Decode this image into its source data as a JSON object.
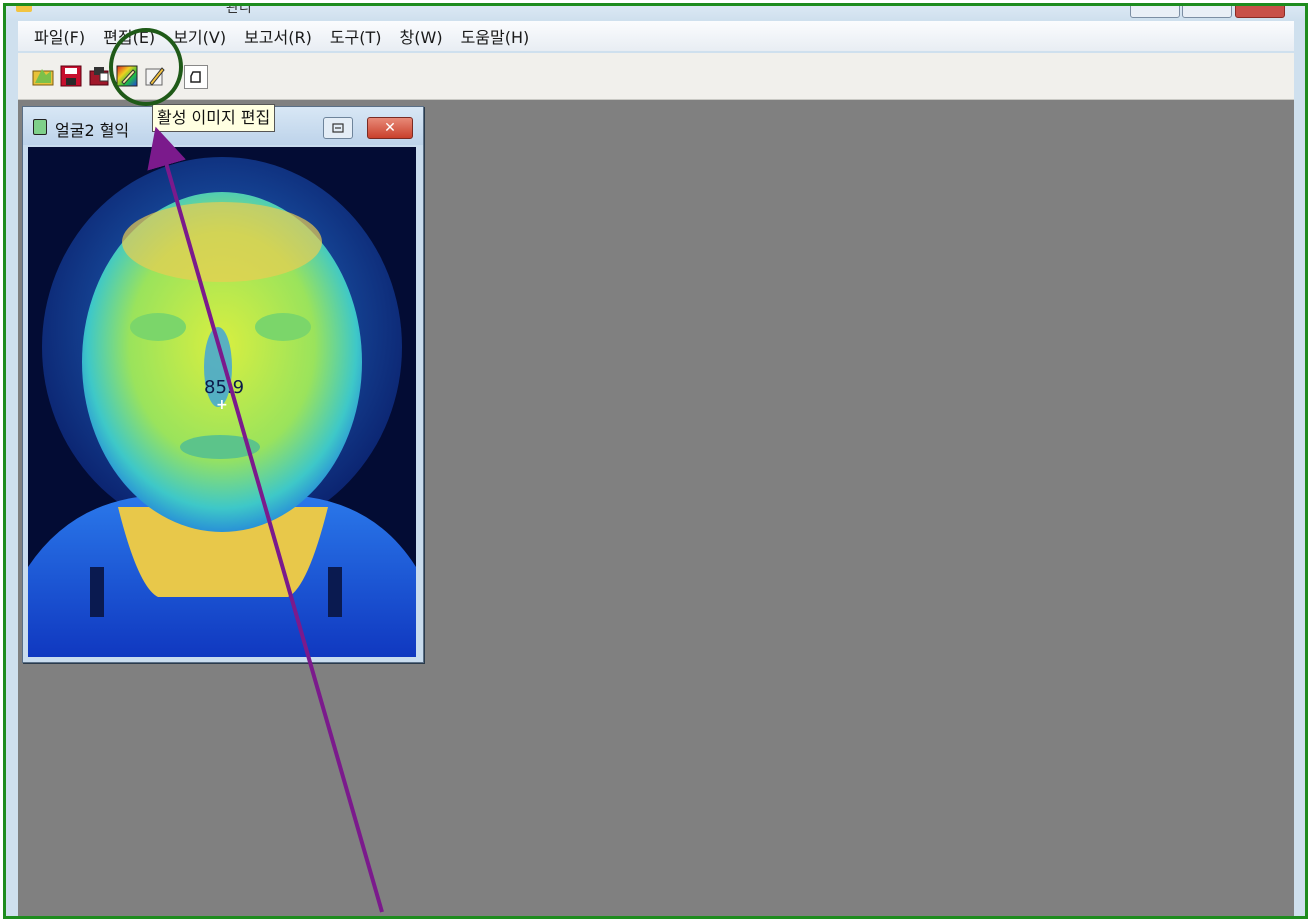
{
  "window": {
    "title": "관리",
    "accent_border": "#1e8c1e"
  },
  "menubar": {
    "items": [
      {
        "label": "파일(F)"
      },
      {
        "label": "편집(E)"
      },
      {
        "label": "보기(V)"
      },
      {
        "label": "보고서(R)"
      },
      {
        "label": "도구(T)"
      },
      {
        "label": "창(W)"
      },
      {
        "label": "도움말(H)"
      }
    ]
  },
  "toolbar": {
    "buttons": [
      {
        "icon": "open-folder-icon"
      },
      {
        "icon": "save-icon"
      },
      {
        "icon": "print-preview-icon"
      },
      {
        "icon": "edit-active-image-icon"
      },
      {
        "icon": "palette-edit-icon"
      },
      {
        "icon": "print-icon"
      }
    ]
  },
  "tooltip": {
    "text": "활성 이미지 편집"
  },
  "child_window": {
    "title": "얼굴2 혈익",
    "close_label": "✕",
    "reading_value": "85.9",
    "crosshair": "+"
  },
  "annotation": {
    "circle_color": "#1f5a18",
    "arrow_color": "#7b1a8c"
  },
  "mdi_background": "#808080"
}
